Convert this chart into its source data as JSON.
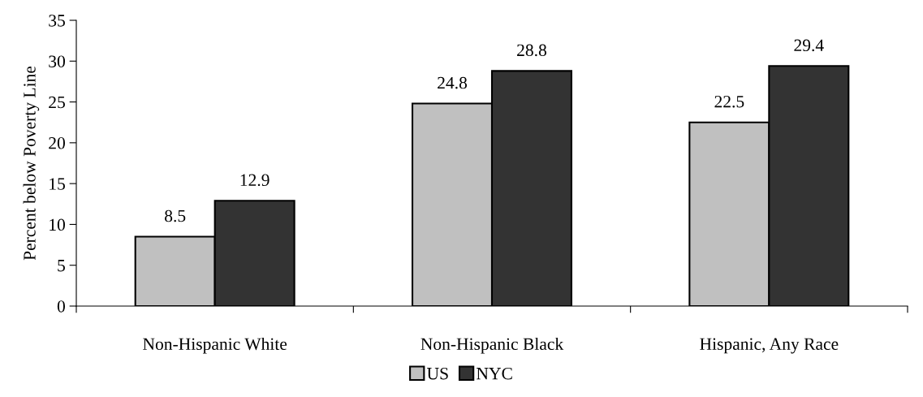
{
  "chart_data": {
    "type": "bar",
    "ylabel": "Percent below Poverty Line",
    "categories": [
      "Non-Hispanic White",
      "Non-Hispanic Black",
      "Hispanic, Any Race"
    ],
    "series": [
      {
        "name": "US",
        "color": "#c0c0c0",
        "values": [
          8.5,
          24.8,
          22.5
        ]
      },
      {
        "name": "NYC",
        "color": "#333333",
        "values": [
          12.9,
          28.8,
          29.4
        ]
      }
    ],
    "ylim": [
      0,
      35
    ],
    "yticks": [
      0,
      5,
      10,
      15,
      20,
      25,
      30,
      35
    ],
    "data_labels": true,
    "legend": "bottom",
    "grid": false
  }
}
